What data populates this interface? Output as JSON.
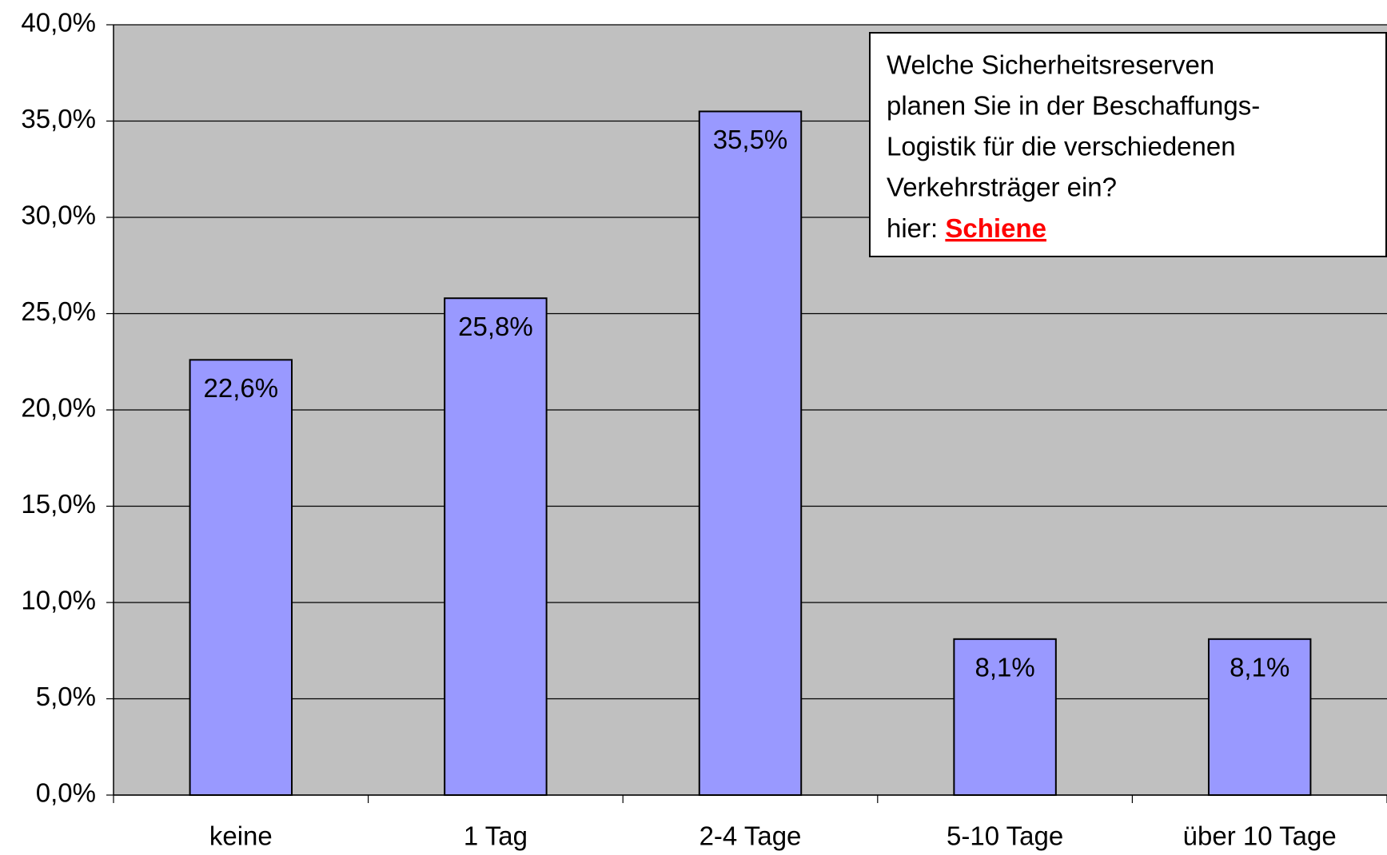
{
  "chart_data": {
    "type": "bar",
    "categories": [
      "keine",
      "1 Tag",
      "2-4 Tage",
      "5-10 Tage",
      "über 10 Tage"
    ],
    "values": [
      22.6,
      25.8,
      35.5,
      8.1,
      8.1
    ],
    "value_labels": [
      "22,6%",
      "25,8%",
      "35,5%",
      "8,1%",
      "8,1%"
    ],
    "color": "#9999ff",
    "ylim": [
      0,
      40
    ],
    "yticks": [
      {
        "value": 0,
        "label": "0,0%"
      },
      {
        "value": 5,
        "label": "5,0%"
      },
      {
        "value": 10,
        "label": "10,0%"
      },
      {
        "value": 15,
        "label": "15,0%"
      },
      {
        "value": 20,
        "label": "20,0%"
      },
      {
        "value": 25,
        "label": "25,0%"
      },
      {
        "value": 30,
        "label": "30,0%"
      },
      {
        "value": 35,
        "label": "35,0%"
      },
      {
        "value": 40,
        "label": "40,0%"
      }
    ],
    "grid": true,
    "annotation": [
      "Welche Sicherheitsreserven",
      "planen Sie in der Beschaffungs-",
      "Logistik für die verschiedenen",
      "Verkehrsträger ein?"
    ],
    "annotation_prefix": "hier:",
    "annotation_highlight": "Schiene"
  }
}
